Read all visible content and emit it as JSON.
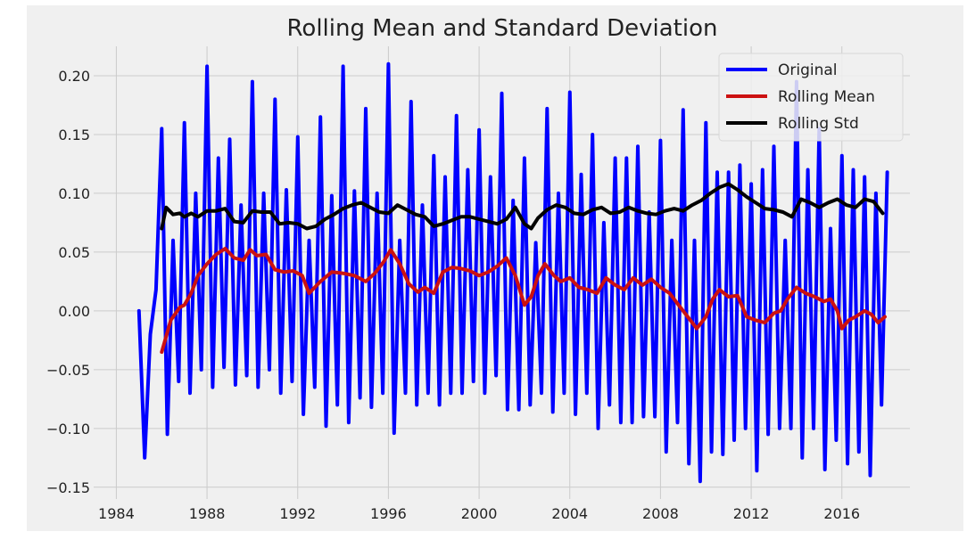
{
  "chart_data": {
    "type": "line",
    "title": "Rolling Mean and Standard Deviation",
    "xlabel": "",
    "ylabel": "",
    "xlim": [
      1983.0,
      2019.0
    ],
    "ylim": [
      -0.16,
      0.225
    ],
    "x_ticks": [
      1984,
      1988,
      1992,
      1996,
      2000,
      2004,
      2008,
      2012,
      2016
    ],
    "y_ticks": [
      -0.15,
      -0.1,
      -0.05,
      0.0,
      0.05,
      0.1,
      0.15,
      0.2
    ],
    "y_tick_labels": [
      "−0.15",
      "−0.10",
      "−0.05",
      "0.00",
      "0.05",
      "0.10",
      "0.15",
      "0.20"
    ],
    "grid": true,
    "legend_position": "top-right",
    "style": {
      "background": "#f0f0f0",
      "grid_color": "#cbcbcb"
    },
    "series": [
      {
        "name": "Original",
        "color": "#0000ff",
        "x": [
          1985.0,
          1985.25,
          1985.5,
          1985.75,
          1986.0,
          1986.25,
          1986.5,
          1986.75,
          1987.0,
          1987.25,
          1987.5,
          1987.75,
          1988.0,
          1988.25,
          1988.5,
          1988.75,
          1989.0,
          1989.25,
          1989.5,
          1989.75,
          1990.0,
          1990.25,
          1990.5,
          1990.75,
          1991.0,
          1991.25,
          1991.5,
          1991.75,
          1992.0,
          1992.25,
          1992.5,
          1992.75,
          1993.0,
          1993.25,
          1993.5,
          1993.75,
          1994.0,
          1994.25,
          1994.5,
          1994.75,
          1995.0,
          1995.25,
          1995.5,
          1995.75,
          1996.0,
          1996.25,
          1996.5,
          1996.75,
          1997.0,
          1997.25,
          1997.5,
          1997.75,
          1998.0,
          1998.25,
          1998.5,
          1998.75,
          1999.0,
          1999.25,
          1999.5,
          1999.75,
          2000.0,
          2000.25,
          2000.5,
          2000.75,
          2001.0,
          2001.25,
          2001.5,
          2001.75,
          2002.0,
          2002.25,
          2002.5,
          2002.75,
          2003.0,
          2003.25,
          2003.5,
          2003.75,
          2004.0,
          2004.25,
          2004.5,
          2004.75,
          2005.0,
          2005.25,
          2005.5,
          2005.75,
          2006.0,
          2006.25,
          2006.5,
          2006.75,
          2007.0,
          2007.25,
          2007.5,
          2007.75,
          2008.0,
          2008.25,
          2008.5,
          2008.75,
          2009.0,
          2009.25,
          2009.5,
          2009.75,
          2010.0,
          2010.25,
          2010.5,
          2010.75,
          2011.0,
          2011.25,
          2011.5,
          2011.75,
          2012.0,
          2012.25,
          2012.5,
          2012.75,
          2013.0,
          2013.25,
          2013.5,
          2013.75,
          2014.0,
          2014.25,
          2014.5,
          2014.75,
          2015.0,
          2015.25,
          2015.5,
          2015.75,
          2016.0,
          2016.25,
          2016.5,
          2016.75,
          2017.0,
          2017.25,
          2017.5,
          2017.75,
          2018.0
        ],
        "values": [
          0.0,
          -0.125,
          -0.02,
          0.018,
          0.155,
          -0.105,
          0.06,
          -0.06,
          0.16,
          -0.07,
          0.1,
          -0.05,
          0.208,
          -0.065,
          0.13,
          -0.048,
          0.146,
          -0.063,
          0.09,
          -0.055,
          0.195,
          -0.065,
          0.1,
          -0.05,
          0.18,
          -0.07,
          0.103,
          -0.06,
          0.148,
          -0.088,
          0.06,
          -0.065,
          0.165,
          -0.098,
          0.098,
          -0.08,
          0.208,
          -0.095,
          0.102,
          -0.074,
          0.172,
          -0.082,
          0.1,
          -0.07,
          0.21,
          -0.104,
          0.06,
          -0.07,
          0.178,
          -0.08,
          0.09,
          -0.07,
          0.132,
          -0.08,
          0.114,
          -0.07,
          0.166,
          -0.07,
          0.12,
          -0.06,
          0.154,
          -0.07,
          0.114,
          -0.055,
          0.185,
          -0.084,
          0.094,
          -0.084,
          0.13,
          -0.08,
          0.058,
          -0.07,
          0.172,
          -0.086,
          0.1,
          -0.07,
          0.186,
          -0.088,
          0.116,
          -0.07,
          0.15,
          -0.1,
          0.075,
          -0.08,
          0.13,
          -0.095,
          0.13,
          -0.095,
          0.14,
          -0.09,
          0.084,
          -0.09,
          0.145,
          -0.12,
          0.06,
          -0.095,
          0.171,
          -0.13,
          0.06,
          -0.145,
          0.16,
          -0.12,
          0.118,
          -0.122,
          0.118,
          -0.11,
          0.124,
          -0.1,
          0.108,
          -0.136,
          0.12,
          -0.105,
          0.14,
          -0.1,
          0.06,
          -0.1,
          0.195,
          -0.125,
          0.12,
          -0.1,
          0.155,
          -0.135,
          0.07,
          -0.11,
          0.132,
          -0.13,
          0.12,
          -0.12,
          0.114,
          -0.14,
          0.1,
          -0.08,
          0.118
        ]
      },
      {
        "name": "Rolling Mean",
        "color": "#cc1111",
        "x": [
          1986.0,
          1986.4,
          1986.8,
          1987.0,
          1987.3,
          1987.6,
          1988.0,
          1988.4,
          1988.8,
          1989.2,
          1989.6,
          1989.9,
          1990.2,
          1990.6,
          1991.0,
          1991.4,
          1991.8,
          1992.2,
          1992.5,
          1993.0,
          1993.5,
          1994.0,
          1994.5,
          1995.0,
          1995.4,
          1995.8,
          1996.1,
          1996.5,
          1996.9,
          1997.3,
          1997.6,
          1998.0,
          1998.4,
          1998.8,
          1999.2,
          1999.6,
          2000.0,
          2000.4,
          2000.8,
          2001.2,
          2001.6,
          2002.0,
          2002.3,
          2002.6,
          2002.9,
          2003.3,
          2003.6,
          2004.0,
          2004.4,
          2004.8,
          2005.2,
          2005.6,
          2006.0,
          2006.4,
          2006.8,
          2007.2,
          2007.6,
          2008.0,
          2008.4,
          2008.8,
          2009.2,
          2009.6,
          2010.0,
          2010.3,
          2010.6,
          2011.0,
          2011.4,
          2011.8,
          2012.2,
          2012.6,
          2013.0,
          2013.3,
          2013.6,
          2014.0,
          2014.4,
          2014.8,
          2015.2,
          2015.5,
          2015.8,
          2016.0,
          2016.3,
          2016.6,
          2017.0,
          2017.3,
          2017.6,
          2017.9
        ],
        "values": [
          -0.035,
          -0.008,
          0.003,
          0.005,
          0.015,
          0.03,
          0.04,
          0.048,
          0.053,
          0.045,
          0.043,
          0.052,
          0.047,
          0.048,
          0.035,
          0.033,
          0.034,
          0.03,
          0.015,
          0.025,
          0.033,
          0.032,
          0.03,
          0.025,
          0.032,
          0.042,
          0.052,
          0.04,
          0.023,
          0.016,
          0.02,
          0.015,
          0.033,
          0.037,
          0.036,
          0.034,
          0.03,
          0.033,
          0.038,
          0.045,
          0.03,
          0.005,
          0.012,
          0.03,
          0.04,
          0.03,
          0.025,
          0.028,
          0.02,
          0.018,
          0.015,
          0.028,
          0.022,
          0.018,
          0.028,
          0.022,
          0.027,
          0.02,
          0.015,
          0.005,
          -0.005,
          -0.015,
          -0.005,
          0.01,
          0.018,
          0.012,
          0.013,
          -0.005,
          -0.008,
          -0.01,
          -0.002,
          0.0,
          0.01,
          0.02,
          0.015,
          0.012,
          0.008,
          0.01,
          0.0,
          -0.015,
          -0.008,
          -0.005,
          0.0,
          -0.003,
          -0.01,
          -0.005
        ]
      },
      {
        "name": "Rolling Std",
        "color": "#000000",
        "x": [
          1986.0,
          1986.2,
          1986.5,
          1986.8,
          1987.0,
          1987.3,
          1987.6,
          1988.0,
          1988.4,
          1988.8,
          1989.2,
          1989.6,
          1990.0,
          1990.4,
          1990.8,
          1991.2,
          1991.6,
          1992.0,
          1992.4,
          1992.8,
          1993.2,
          1993.6,
          1994.0,
          1994.4,
          1994.8,
          1995.2,
          1995.6,
          1996.0,
          1996.4,
          1996.8,
          1997.2,
          1997.6,
          1998.0,
          1998.4,
          1998.8,
          1999.2,
          1999.6,
          2000.0,
          2000.4,
          2000.8,
          2001.2,
          2001.6,
          2002.0,
          2002.3,
          2002.6,
          2003.0,
          2003.4,
          2003.8,
          2004.2,
          2004.6,
          2005.0,
          2005.4,
          2005.8,
          2006.2,
          2006.6,
          2007.0,
          2007.4,
          2007.8,
          2008.2,
          2008.6,
          2009.0,
          2009.4,
          2009.8,
          2010.2,
          2010.6,
          2011.0,
          2011.4,
          2011.8,
          2012.2,
          2012.6,
          2013.0,
          2013.4,
          2013.8,
          2014.2,
          2014.6,
          2015.0,
          2015.4,
          2015.8,
          2016.2,
          2016.6,
          2017.0,
          2017.4,
          2017.8
        ],
        "values": [
          0.07,
          0.088,
          0.082,
          0.083,
          0.08,
          0.083,
          0.08,
          0.085,
          0.085,
          0.087,
          0.076,
          0.075,
          0.085,
          0.084,
          0.084,
          0.074,
          0.075,
          0.074,
          0.07,
          0.072,
          0.078,
          0.082,
          0.087,
          0.09,
          0.092,
          0.088,
          0.084,
          0.083,
          0.09,
          0.086,
          0.082,
          0.08,
          0.072,
          0.074,
          0.077,
          0.08,
          0.08,
          0.078,
          0.076,
          0.074,
          0.078,
          0.088,
          0.074,
          0.07,
          0.079,
          0.086,
          0.09,
          0.088,
          0.083,
          0.082,
          0.086,
          0.088,
          0.083,
          0.084,
          0.088,
          0.085,
          0.083,
          0.082,
          0.085,
          0.087,
          0.085,
          0.09,
          0.094,
          0.1,
          0.105,
          0.108,
          0.103,
          0.097,
          0.092,
          0.087,
          0.086,
          0.084,
          0.08,
          0.095,
          0.092,
          0.088,
          0.092,
          0.095,
          0.09,
          0.088,
          0.095,
          0.093,
          0.083
        ]
      }
    ]
  }
}
